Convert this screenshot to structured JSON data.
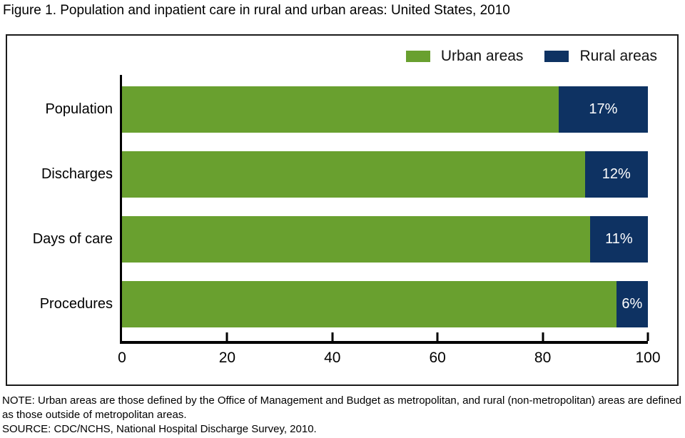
{
  "title": "Figure 1. Population and inpatient care in rural and urban areas: United States, 2010",
  "colors": {
    "urban": "#69A02F",
    "rural": "#0E3262",
    "axis": "#000000",
    "value_label": "#FFFFFF"
  },
  "legend": [
    {
      "label": "Urban areas",
      "series": "urban"
    },
    {
      "label": "Rural areas",
      "series": "rural"
    }
  ],
  "chart_data": {
    "type": "bar",
    "orientation": "horizontal-stacked",
    "title": "Figure 1. Population and inpatient care in rural and urban areas: United States, 2010",
    "categories": [
      "Population",
      "Discharges",
      "Days of care",
      "Procedures"
    ],
    "series": [
      {
        "name": "Urban areas",
        "color": "#69A02F",
        "values": [
          83,
          88,
          89,
          94
        ]
      },
      {
        "name": "Rural areas",
        "color": "#0E3262",
        "values": [
          17,
          12,
          11,
          6
        ],
        "labels": [
          "17%",
          "12%",
          "11%",
          "6%"
        ]
      }
    ],
    "xlabel": "",
    "ylabel": "",
    "xlim": [
      0,
      100
    ],
    "x_ticks": [
      0,
      20,
      40,
      60,
      80,
      100
    ],
    "grid": false,
    "legend_position": "top-right"
  },
  "notes": {
    "note": "NOTE: Urban areas are those defined by the Office of Management and Budget as metropolitan, and rural (non-metropolitan) areas are defined as those outside of metropolitan areas.",
    "source": "SOURCE: CDC/NCHS, National Hospital Discharge Survey, 2010."
  }
}
